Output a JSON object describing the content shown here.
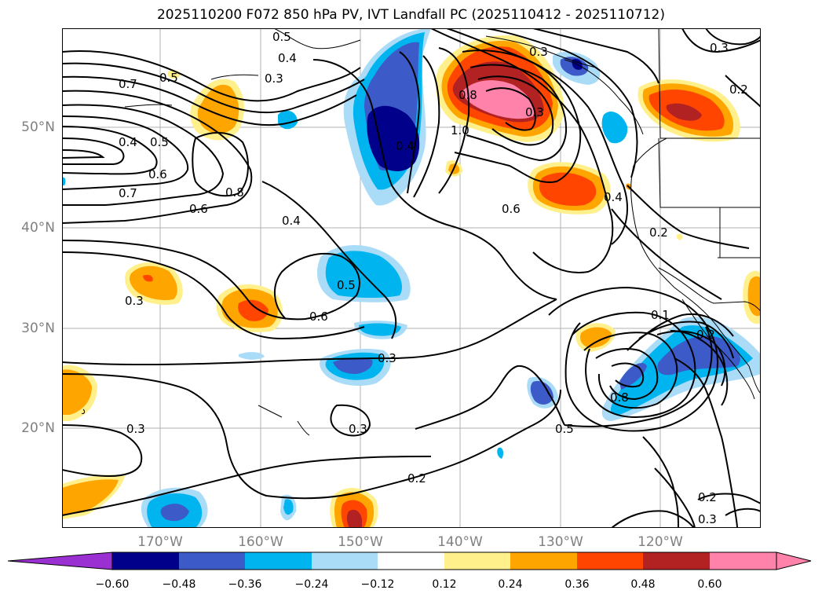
{
  "title": "2025110200 F072 850 hPa PV, IVT Landfall PC (2025110412 - 2025110712)",
  "lat_labels": [
    "50°N",
    "40°N",
    "30°N",
    "20°N"
  ],
  "lon_labels": [
    "170°W",
    "160°W",
    "150°W",
    "140°W",
    "130°W",
    "120°W"
  ],
  "contour_labels": [
    "0.5",
    "0.4",
    "0.3",
    "0.7",
    "0.5",
    "0.4",
    "0.5",
    "0.6",
    "0.7",
    "0.8",
    "0.6",
    "0.4",
    "0.8",
    "1.0",
    "0.3",
    "0.4",
    "0.6",
    "0.4",
    "0.2",
    "0.3",
    "0.2",
    "0.5",
    "0.6",
    "0.3",
    "0.3",
    "0.3",
    "0.3",
    "0.1",
    "0.2",
    "0.8",
    "0.5",
    "0.2",
    "0.2",
    "0.3",
    "0.3"
  ],
  "colorbar": {
    "ticks": [
      "−0.60",
      "−0.48",
      "−0.36",
      "−0.24",
      "−0.12",
      "0.12",
      "0.24",
      "0.36",
      "0.48",
      "0.60"
    ],
    "colors": [
      "#9b30d2",
      "#00008b",
      "#3c5ac8",
      "#00b4f0",
      "#aadcf8",
      "#ffffff",
      "#fff08c",
      "#ffa500",
      "#ff4500",
      "#b22222",
      "#ff82aa",
      "#ff82aa"
    ]
  },
  "fill_colors": {
    "neg_048": "#00008b",
    "neg_036": "#3c5ac8",
    "neg_024": "#00b4f0",
    "neg_012": "#aadcf8",
    "pos_012": "#fff08c",
    "pos_024": "#ffa500",
    "pos_036": "#ff4500",
    "pos_048": "#b22222",
    "pos_060": "#ff82aa"
  }
}
